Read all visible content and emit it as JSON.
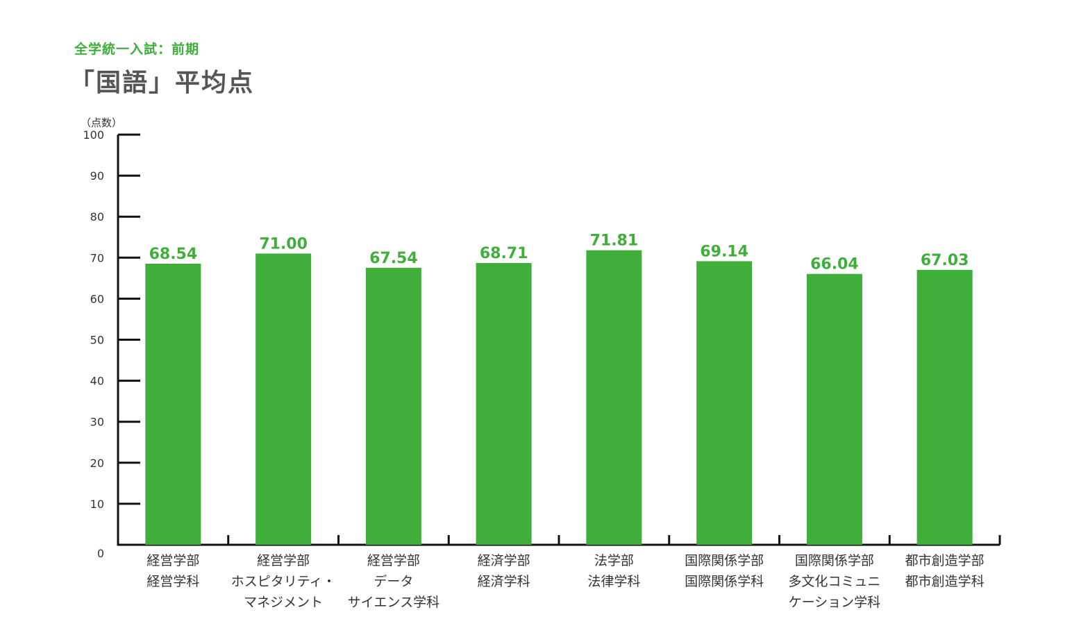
{
  "header": {
    "subtitle": "全学統一入試：前期",
    "title": "「国語」平均点"
  },
  "colors": {
    "bar": "#3fae3a",
    "axis": "#111111",
    "value_label": "#3fae3a",
    "title": "#555555"
  },
  "chart_data": {
    "type": "bar",
    "title": "「国語」平均点",
    "subtitle": "全学統一入試：前期",
    "ylabel": "（点数）",
    "xlabel": "",
    "ylim": [
      0,
      100
    ],
    "yticks": [
      0,
      10,
      20,
      30,
      40,
      50,
      60,
      70,
      80,
      90,
      100
    ],
    "grid": false,
    "legend": "none",
    "categories": [
      [
        "経営学部",
        "経営学科"
      ],
      [
        "経営学部",
        "ホスピタリティ・",
        "マネジメント"
      ],
      [
        "経営学部",
        "データ",
        "サイエンス学科"
      ],
      [
        "経済学部",
        "経済学科"
      ],
      [
        "法学部",
        "法律学科"
      ],
      [
        "国際関係学部",
        "国際関係学科"
      ],
      [
        "国際関係学部",
        "多文化コミュニ",
        "ケーション学科"
      ],
      [
        "都市創造学部",
        "都市創造学科"
      ]
    ],
    "values": [
      68.54,
      71.0,
      67.54,
      68.71,
      71.81,
      69.14,
      66.04,
      67.03
    ],
    "value_labels": [
      "68.54",
      "71.00",
      "67.54",
      "68.71",
      "71.81",
      "69.14",
      "66.04",
      "67.03"
    ]
  }
}
